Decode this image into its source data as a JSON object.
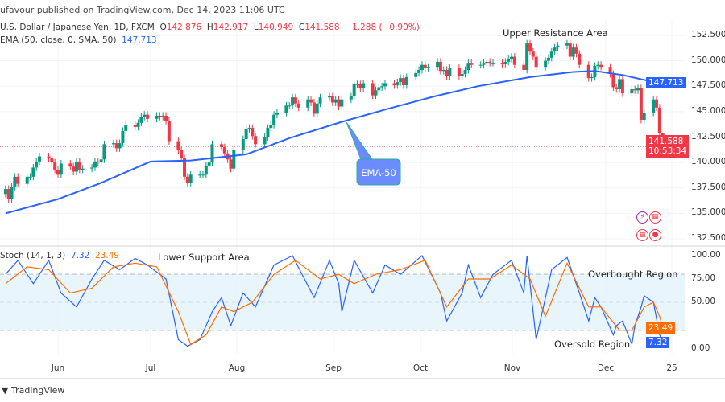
{
  "header": {
    "published": "ufavour published on TradingView.com, Dec 14, 2023 11:06 UTC"
  },
  "legend": {
    "symbol": "U.S. Dollar / Japanese Yen, 1D, FXCM",
    "o_label": "O",
    "o": "142.876",
    "h_label": "H",
    "h": "142.917",
    "l_label": "L",
    "l": "140.949",
    "c_label": "C",
    "c": "141.588",
    "change": "−1.288 (−0.90%)",
    "ema_label": "EMA (50, close, 0, SMA, 50)",
    "ema_value": "147.713"
  },
  "stoch_legend": {
    "label": "Stoch (14, 1, 3)",
    "k": "7.32",
    "d": "23.49"
  },
  "annotations": {
    "upper": "Upper Resistance Area",
    "lower": "Lower Support Area",
    "overbought": "Overbought Region",
    "oversold": "Oversold Region",
    "ema_callout": "EMA-50"
  },
  "price_tags": {
    "ema": "147.713",
    "last": "141.588",
    "countdown": "10:53:34",
    "stoch_d": "23.49",
    "stoch_k": "7.32"
  },
  "footer": {
    "brand": "TradingView"
  },
  "colors": {
    "up": "#089981",
    "down": "#f23645",
    "ema": "#2962ff",
    "k": "#2962ff",
    "d": "#ff6d00",
    "band": "#e3f2fd"
  },
  "chart_data": [
    {
      "type": "candlestick",
      "symbol": "USDJPY",
      "timeframe": "1D",
      "y_ticks": [
        "152.500",
        "150.000",
        "147.500",
        "145.000",
        "142.500",
        "140.000",
        "137.500",
        "135.000",
        "132.500"
      ],
      "ylim": [
        132.5,
        152.5
      ],
      "x_ticks": [
        "Jun",
        "Jul",
        "Aug",
        "Sep",
        "Oct",
        "Nov",
        "Dec",
        "25"
      ],
      "last": {
        "open": 142.876,
        "high": 142.917,
        "low": 140.949,
        "close": 141.588
      },
      "closes": [
        [
          "2023-05-15",
          137.4
        ],
        [
          "2023-05-16",
          136.4
        ],
        [
          "2023-05-17",
          137.6
        ],
        [
          "2023-05-18",
          138.6
        ],
        [
          "2023-05-19",
          137.9
        ],
        [
          "2023-05-22",
          138.6
        ],
        [
          "2023-05-23",
          138.6
        ],
        [
          "2023-05-24",
          139.5
        ],
        [
          "2023-05-25",
          140.1
        ],
        [
          "2023-05-26",
          140.6
        ],
        [
          "2023-05-29",
          140.4
        ],
        [
          "2023-05-30",
          140.0
        ],
        [
          "2023-05-31",
          139.3
        ],
        [
          "2023-06-01",
          138.8
        ],
        [
          "2023-06-02",
          139.9
        ],
        [
          "2023-06-05",
          139.6
        ],
        [
          "2023-06-06",
          139.1
        ],
        [
          "2023-06-07",
          140.1
        ],
        [
          "2023-06-08",
          139.3
        ],
        [
          "2023-06-09",
          139.4
        ],
        [
          "2023-06-12",
          139.5
        ],
        [
          "2023-06-13",
          140.1
        ],
        [
          "2023-06-14",
          140.0
        ],
        [
          "2023-06-15",
          140.3
        ],
        [
          "2023-06-16",
          141.8
        ],
        [
          "2023-06-19",
          141.9
        ],
        [
          "2023-06-20",
          141.4
        ],
        [
          "2023-06-21",
          141.9
        ],
        [
          "2023-06-22",
          143.1
        ],
        [
          "2023-06-23",
          143.7
        ],
        [
          "2023-06-26",
          143.5
        ],
        [
          "2023-06-27",
          143.9
        ],
        [
          "2023-06-28",
          144.5
        ],
        [
          "2023-06-29",
          144.7
        ],
        [
          "2023-06-30",
          144.3
        ],
        [
          "2023-07-03",
          144.6
        ],
        [
          "2023-07-04",
          144.5
        ],
        [
          "2023-07-05",
          144.6
        ],
        [
          "2023-07-06",
          144.1
        ],
        [
          "2023-07-07",
          142.1
        ],
        [
          "2023-07-10",
          141.2
        ],
        [
          "2023-07-11",
          140.4
        ],
        [
          "2023-07-12",
          138.6
        ],
        [
          "2023-07-13",
          138.0
        ],
        [
          "2023-07-14",
          138.8
        ],
        [
          "2023-07-17",
          138.8
        ],
        [
          "2023-07-18",
          138.8
        ],
        [
          "2023-07-19",
          139.7
        ],
        [
          "2023-07-20",
          140.0
        ],
        [
          "2023-07-21",
          141.8
        ],
        [
          "2023-07-24",
          141.5
        ],
        [
          "2023-07-25",
          140.9
        ],
        [
          "2023-07-26",
          140.3
        ],
        [
          "2023-07-27",
          139.4
        ],
        [
          "2023-07-28",
          141.2
        ],
        [
          "2023-07-31",
          142.3
        ],
        [
          "2023-08-01",
          143.3
        ],
        [
          "2023-08-02",
          143.4
        ],
        [
          "2023-08-03",
          142.6
        ],
        [
          "2023-08-04",
          141.8
        ],
        [
          "2023-08-07",
          142.5
        ],
        [
          "2023-08-08",
          143.4
        ],
        [
          "2023-08-09",
          143.7
        ],
        [
          "2023-08-10",
          144.7
        ],
        [
          "2023-08-11",
          144.9
        ],
        [
          "2023-08-14",
          145.6
        ],
        [
          "2023-08-15",
          145.6
        ],
        [
          "2023-08-16",
          146.4
        ],
        [
          "2023-08-17",
          145.8
        ],
        [
          "2023-08-18",
          145.4
        ],
        [
          "2023-08-21",
          146.2
        ],
        [
          "2023-08-22",
          145.9
        ],
        [
          "2023-08-23",
          144.8
        ],
        [
          "2023-08-24",
          145.8
        ],
        [
          "2023-08-25",
          146.4
        ],
        [
          "2023-08-28",
          146.5
        ],
        [
          "2023-08-29",
          145.9
        ],
        [
          "2023-08-30",
          146.2
        ],
        [
          "2023-08-31",
          145.5
        ],
        [
          "2023-09-01",
          146.2
        ],
        [
          "2023-09-04",
          146.5
        ],
        [
          "2023-09-05",
          147.7
        ],
        [
          "2023-09-06",
          147.7
        ],
        [
          "2023-09-07",
          147.3
        ],
        [
          "2023-09-08",
          147.8
        ],
        [
          "2023-09-11",
          146.6
        ],
        [
          "2023-09-12",
          147.1
        ],
        [
          "2023-09-13",
          147.4
        ],
        [
          "2023-09-14",
          147.5
        ],
        [
          "2023-09-15",
          147.8
        ],
        [
          "2023-09-18",
          147.6
        ],
        [
          "2023-09-19",
          147.9
        ],
        [
          "2023-09-20",
          148.3
        ],
        [
          "2023-09-21",
          147.6
        ],
        [
          "2023-09-22",
          148.4
        ],
        [
          "2023-09-25",
          148.8
        ],
        [
          "2023-09-26",
          149.1
        ],
        [
          "2023-09-27",
          149.6
        ],
        [
          "2023-09-28",
          149.3
        ],
        [
          "2023-09-29",
          149.4
        ],
        [
          "2023-10-02",
          149.9
        ],
        [
          "2023-10-03",
          149.0
        ],
        [
          "2023-10-04",
          149.1
        ],
        [
          "2023-10-05",
          148.5
        ],
        [
          "2023-10-06",
          149.3
        ],
        [
          "2023-10-09",
          148.5
        ],
        [
          "2023-10-10",
          148.7
        ],
        [
          "2023-10-11",
          149.1
        ],
        [
          "2023-10-12",
          149.8
        ],
        [
          "2023-10-13",
          149.6
        ],
        [
          "2023-10-16",
          149.6
        ],
        [
          "2023-10-17",
          149.8
        ],
        [
          "2023-10-18",
          149.9
        ],
        [
          "2023-10-19",
          149.8
        ],
        [
          "2023-10-20",
          149.8
        ],
        [
          "2023-10-23",
          149.7
        ],
        [
          "2023-10-24",
          149.9
        ],
        [
          "2023-10-25",
          150.2
        ],
        [
          "2023-10-26",
          150.4
        ],
        [
          "2023-10-27",
          149.6
        ],
        [
          "2023-10-30",
          149.1
        ],
        [
          "2023-10-31",
          151.7
        ],
        [
          "2023-11-01",
          150.9
        ],
        [
          "2023-11-02",
          150.4
        ],
        [
          "2023-11-03",
          149.4
        ],
        [
          "2023-11-06",
          150.0
        ],
        [
          "2023-11-07",
          150.3
        ],
        [
          "2023-11-08",
          150.9
        ],
        [
          "2023-11-09",
          151.3
        ],
        [
          "2023-11-10",
          151.5
        ],
        [
          "2023-11-13",
          151.7
        ],
        [
          "2023-11-14",
          150.4
        ],
        [
          "2023-11-15",
          151.3
        ],
        [
          "2023-11-16",
          150.7
        ],
        [
          "2023-11-17",
          149.6
        ],
        [
          "2023-11-20",
          148.3
        ],
        [
          "2023-11-21",
          148.4
        ],
        [
          "2023-11-22",
          149.5
        ],
        [
          "2023-11-23",
          149.6
        ],
        [
          "2023-11-24",
          149.4
        ],
        [
          "2023-11-27",
          148.7
        ],
        [
          "2023-11-28",
          147.4
        ],
        [
          "2023-11-29",
          147.2
        ],
        [
          "2023-11-30",
          148.2
        ],
        [
          "2023-12-01",
          146.8
        ],
        [
          "2023-12-04",
          147.2
        ],
        [
          "2023-12-05",
          147.1
        ],
        [
          "2023-12-06",
          147.3
        ],
        [
          "2023-12-07",
          144.2
        ],
        [
          "2023-12-08",
          144.9
        ],
        [
          "2023-12-11",
          146.2
        ],
        [
          "2023-12-12",
          145.4
        ],
        [
          "2023-12-13",
          142.876
        ],
        [
          "2023-12-14",
          141.588
        ]
      ],
      "ema50": [
        [
          "2023-05-15",
          135.0
        ],
        [
          "2023-06-01",
          136.4
        ],
        [
          "2023-06-15",
          138.0
        ],
        [
          "2023-07-01",
          140.1
        ],
        [
          "2023-07-14",
          140.2
        ],
        [
          "2023-08-01",
          140.8
        ],
        [
          "2023-08-15",
          142.4
        ],
        [
          "2023-09-01",
          144.0
        ],
        [
          "2023-09-15",
          145.2
        ],
        [
          "2023-10-01",
          146.5
        ],
        [
          "2023-10-15",
          147.5
        ],
        [
          "2023-11-01",
          148.4
        ],
        [
          "2023-11-15",
          148.9
        ],
        [
          "2023-11-22",
          149.0
        ],
        [
          "2023-12-01",
          148.6
        ],
        [
          "2023-12-14",
          147.713
        ]
      ]
    },
    {
      "type": "line",
      "name": "Stoch (14, 1, 3)",
      "ylim": [
        0,
        100
      ],
      "y_ticks": [
        "100.00",
        "75.00",
        "50.00",
        "0.00"
      ],
      "overbought": 80,
      "oversold": 20,
      "k": [
        [
          "2023-05-15",
          80
        ],
        [
          "2023-05-19",
          95
        ],
        [
          "2023-05-24",
          70
        ],
        [
          "2023-05-29",
          95
        ],
        [
          "2023-06-02",
          60
        ],
        [
          "2023-06-07",
          45
        ],
        [
          "2023-06-12",
          75
        ],
        [
          "2023-06-16",
          95
        ],
        [
          "2023-06-21",
          85
        ],
        [
          "2023-06-26",
          97
        ],
        [
          "2023-06-30",
          90
        ],
        [
          "2023-07-06",
          75
        ],
        [
          "2023-07-10",
          10
        ],
        [
          "2023-07-13",
          3
        ],
        [
          "2023-07-17",
          10
        ],
        [
          "2023-07-21",
          40
        ],
        [
          "2023-07-24",
          55
        ],
        [
          "2023-07-27",
          25
        ],
        [
          "2023-07-31",
          60
        ],
        [
          "2023-08-04",
          45
        ],
        [
          "2023-08-10",
          90
        ],
        [
          "2023-08-16",
          100
        ],
        [
          "2023-08-23",
          55
        ],
        [
          "2023-08-28",
          95
        ],
        [
          "2023-08-31",
          70
        ],
        [
          "2023-09-01",
          40
        ],
        [
          "2023-09-05",
          95
        ],
        [
          "2023-09-11",
          60
        ],
        [
          "2023-09-15",
          90
        ],
        [
          "2023-09-20",
          80
        ],
        [
          "2023-09-27",
          100
        ],
        [
          "2023-10-03",
          60
        ],
        [
          "2023-10-05",
          30
        ],
        [
          "2023-10-10",
          60
        ],
        [
          "2023-10-12",
          90
        ],
        [
          "2023-10-16",
          55
        ],
        [
          "2023-10-20",
          80
        ],
        [
          "2023-10-26",
          95
        ],
        [
          "2023-10-30",
          60
        ],
        [
          "2023-10-31",
          100
        ],
        [
          "2023-11-03",
          10
        ],
        [
          "2023-11-08",
          85
        ],
        [
          "2023-11-13",
          98
        ],
        [
          "2023-11-17",
          60
        ],
        [
          "2023-11-20",
          30
        ],
        [
          "2023-11-22",
          55
        ],
        [
          "2023-11-24",
          45
        ],
        [
          "2023-11-28",
          15
        ],
        [
          "2023-11-29",
          25
        ],
        [
          "2023-12-01",
          30
        ],
        [
          "2023-12-04",
          5
        ],
        [
          "2023-12-05",
          25
        ],
        [
          "2023-12-07",
          45
        ],
        [
          "2023-12-08",
          57
        ],
        [
          "2023-12-11",
          50
        ],
        [
          "2023-12-13",
          15
        ],
        [
          "2023-12-14",
          7.32
        ]
      ],
      "d": [
        [
          "2023-05-15",
          70
        ],
        [
          "2023-05-22",
          88
        ],
        [
          "2023-05-29",
          85
        ],
        [
          "2023-06-05",
          60
        ],
        [
          "2023-06-12",
          65
        ],
        [
          "2023-06-19",
          88
        ],
        [
          "2023-06-26",
          92
        ],
        [
          "2023-07-03",
          88
        ],
        [
          "2023-07-10",
          40
        ],
        [
          "2023-07-14",
          5
        ],
        [
          "2023-07-19",
          15
        ],
        [
          "2023-07-24",
          45
        ],
        [
          "2023-07-28",
          40
        ],
        [
          "2023-08-03",
          50
        ],
        [
          "2023-08-10",
          80
        ],
        [
          "2023-08-17",
          95
        ],
        [
          "2023-08-25",
          75
        ],
        [
          "2023-08-31",
          80
        ],
        [
          "2023-09-05",
          70
        ],
        [
          "2023-09-12",
          80
        ],
        [
          "2023-09-20",
          85
        ],
        [
          "2023-09-28",
          95
        ],
        [
          "2023-10-05",
          45
        ],
        [
          "2023-10-12",
          75
        ],
        [
          "2023-10-19",
          75
        ],
        [
          "2023-10-26",
          90
        ],
        [
          "2023-11-01",
          75
        ],
        [
          "2023-11-06",
          35
        ],
        [
          "2023-11-13",
          92
        ],
        [
          "2023-11-20",
          45
        ],
        [
          "2023-11-24",
          45
        ],
        [
          "2023-11-30",
          20
        ],
        [
          "2023-12-04",
          20
        ],
        [
          "2023-12-08",
          45
        ],
        [
          "2023-12-11",
          50
        ],
        [
          "2023-12-13",
          35
        ],
        [
          "2023-12-14",
          23.49
        ]
      ]
    }
  ]
}
